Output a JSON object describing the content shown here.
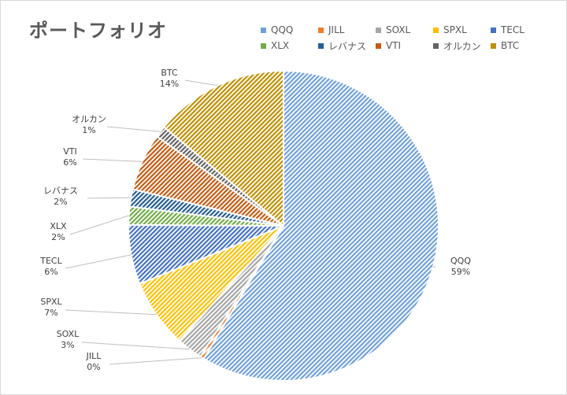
{
  "title": "ポートフォリオ",
  "chart_data": {
    "type": "pie",
    "title": "ポートフォリオ",
    "legend_position": "top-right",
    "slices": [
      {
        "name": "QQQ",
        "percent_label": "59%",
        "value": 58.6,
        "color": "#6fa0dc"
      },
      {
        "name": "JILL",
        "percent_label": "0%",
        "value": 0.4,
        "color": "#ed7d31"
      },
      {
        "name": "SOXL",
        "percent_label": "3%",
        "value": 2.7,
        "color": "#a5a5a5"
      },
      {
        "name": "SPXL",
        "percent_label": "7%",
        "value": 7.2,
        "color": "#ffc000"
      },
      {
        "name": "TECL",
        "percent_label": "6%",
        "value": 6.2,
        "color": "#4472c4"
      },
      {
        "name": "XLX",
        "percent_label": "2%",
        "value": 1.9,
        "color": "#70ad47"
      },
      {
        "name": "レバナス",
        "percent_label": "2%",
        "value": 1.8,
        "color": "#255e91"
      },
      {
        "name": "VTI",
        "percent_label": "6%",
        "value": 6.0,
        "color": "#c55a11"
      },
      {
        "name": "オルカン",
        "percent_label": "1%",
        "value": 1.2,
        "color": "#636363"
      },
      {
        "name": "BTC",
        "percent_label": "14%",
        "value": 14.0,
        "color": "#bf9000"
      }
    ]
  }
}
